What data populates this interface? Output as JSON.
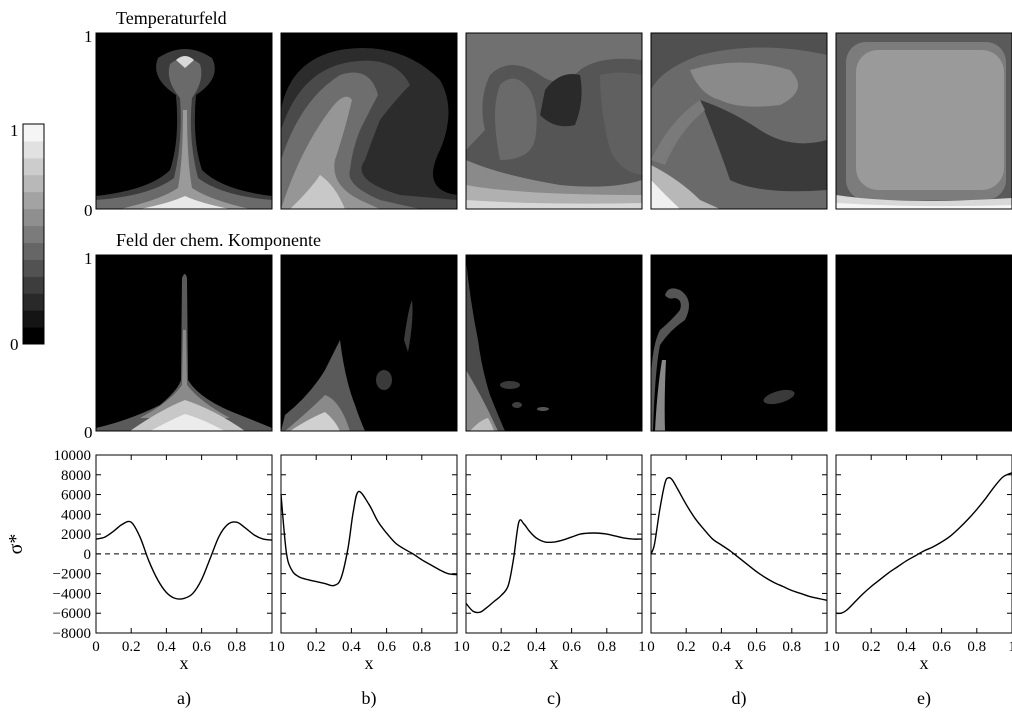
{
  "labels": {
    "row1_title": "Temperaturfeld",
    "row2_title": "Feld der chem. Komponente",
    "colorbar_top": "1",
    "colorbar_bottom": "0",
    "row1_y_top": "1",
    "row1_y_bottom": "0",
    "row2_y_top": "1",
    "row2_y_bottom": "0",
    "panels": [
      "a)",
      "b)",
      "c)",
      "d)",
      "e)"
    ]
  },
  "colorbar": {
    "levels": 13,
    "range": [
      0,
      1
    ]
  },
  "chart_data": {
    "type": "line",
    "ylabel": "σ*",
    "xlabel": "x",
    "xlim": [
      0,
      1
    ],
    "ylim": [
      -8000,
      10000
    ],
    "yticks": [
      10000,
      8000,
      6000,
      4000,
      2000,
      0,
      -2000,
      -4000,
      -6000,
      -8000
    ],
    "xticks": [
      "0",
      "0.2",
      "0.4",
      "0.6",
      "0.8",
      "1"
    ],
    "reference_line": {
      "y": 0,
      "style": "dashed"
    },
    "panels": [
      {
        "label": "a)",
        "x": [
          0,
          0.05,
          0.1,
          0.15,
          0.2,
          0.25,
          0.3,
          0.35,
          0.4,
          0.45,
          0.5,
          0.55,
          0.6,
          0.65,
          0.7,
          0.75,
          0.8,
          0.85,
          0.9,
          0.95,
          1.0
        ],
        "y": [
          1500,
          1700,
          2300,
          3000,
          3200,
          1700,
          -700,
          -2600,
          -3900,
          -4500,
          -4500,
          -4000,
          -2600,
          -400,
          1800,
          3000,
          3200,
          2600,
          1900,
          1500,
          1400
        ]
      },
      {
        "label": "b)",
        "x": [
          0,
          0.03,
          0.06,
          0.1,
          0.15,
          0.2,
          0.25,
          0.3,
          0.34,
          0.38,
          0.41,
          0.44,
          0.5,
          0.55,
          0.6,
          0.65,
          0.7,
          0.75,
          0.8,
          0.85,
          0.9,
          0.95,
          1.0
        ],
        "y": [
          6000,
          200,
          -1600,
          -2300,
          -2600,
          -2800,
          -3000,
          -3200,
          -2500,
          500,
          4200,
          6300,
          5000,
          3300,
          2100,
          1100,
          500,
          0,
          -600,
          -1100,
          -1600,
          -2000,
          -2100
        ]
      },
      {
        "label": "c)",
        "x": [
          0,
          0.04,
          0.08,
          0.12,
          0.16,
          0.2,
          0.24,
          0.27,
          0.3,
          0.33,
          0.36,
          0.4,
          0.45,
          0.5,
          0.55,
          0.6,
          0.65,
          0.7,
          0.75,
          0.8,
          0.85,
          0.9,
          0.95,
          1.0
        ],
        "y": [
          -5000,
          -5800,
          -5900,
          -5400,
          -4800,
          -4200,
          -3200,
          -500,
          3200,
          3000,
          2300,
          1600,
          1200,
          1200,
          1400,
          1700,
          2000,
          2100,
          2100,
          2000,
          1800,
          1600,
          1500,
          1500
        ]
      },
      {
        "label": "d)",
        "x": [
          0,
          0.02,
          0.05,
          0.08,
          0.1,
          0.12,
          0.15,
          0.2,
          0.25,
          0.3,
          0.35,
          0.4,
          0.45,
          0.5,
          0.55,
          0.6,
          0.65,
          0.7,
          0.75,
          0.8,
          0.85,
          0.9,
          0.95,
          1.0
        ],
        "y": [
          0,
          1000,
          4500,
          7200,
          7700,
          7500,
          6600,
          5000,
          3600,
          2500,
          1500,
          900,
          300,
          -400,
          -1100,
          -1800,
          -2400,
          -2900,
          -3300,
          -3700,
          -4000,
          -4300,
          -4500,
          -4700
        ]
      },
      {
        "label": "e)",
        "x": [
          0,
          0.03,
          0.06,
          0.1,
          0.15,
          0.2,
          0.25,
          0.3,
          0.35,
          0.4,
          0.45,
          0.5,
          0.55,
          0.6,
          0.65,
          0.7,
          0.75,
          0.8,
          0.85,
          0.9,
          0.95,
          1.0
        ],
        "y": [
          -6000,
          -6000,
          -5700,
          -5000,
          -4100,
          -3300,
          -2600,
          -1900,
          -1300,
          -700,
          -200,
          300,
          700,
          1200,
          1800,
          2600,
          3500,
          4500,
          5600,
          6800,
          7800,
          8200
        ]
      }
    ]
  }
}
